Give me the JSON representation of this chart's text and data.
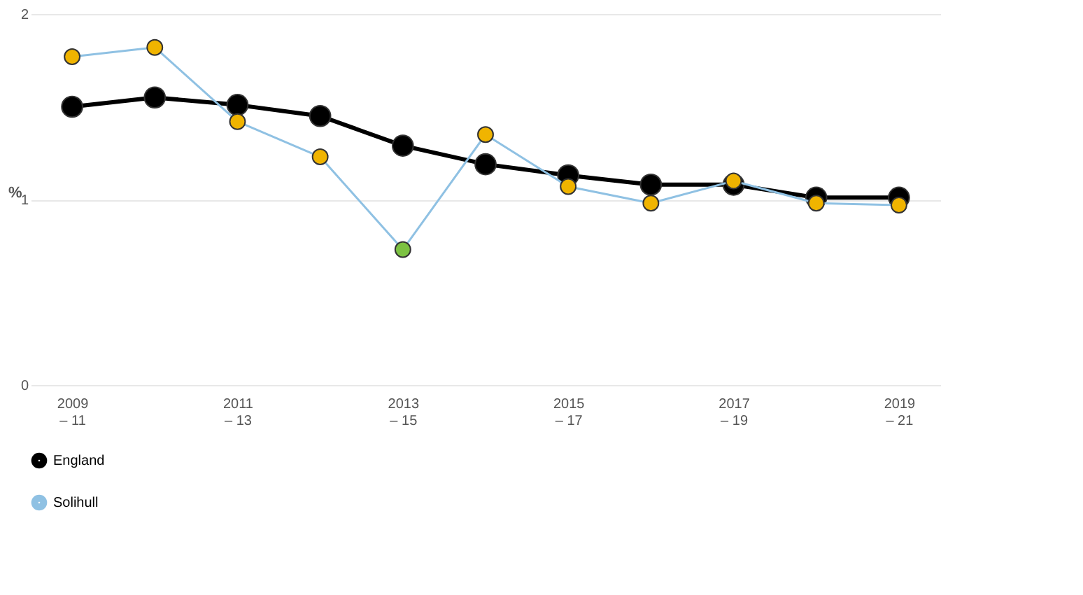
{
  "chart_data": {
    "type": "line",
    "ylabel": "%",
    "categories": [
      "2009\n– 11",
      null,
      "2011\n– 13",
      null,
      "2013\n– 15",
      null,
      "2015\n– 17",
      null,
      "2017\n– 19",
      null,
      "2019\n– 21"
    ],
    "series": [
      {
        "name": "England",
        "color": "#000000",
        "values": [
          1.5,
          1.55,
          1.51,
          1.45,
          1.29,
          1.19,
          1.13,
          1.08,
          1.08,
          1.01,
          1.01
        ]
      },
      {
        "name": "Solihull",
        "color": "#8fc1e3",
        "values": [
          1.77,
          1.82,
          1.42,
          1.23,
          0.73,
          1.35,
          1.07,
          0.98,
          1.1,
          0.98,
          0.97
        ],
        "colors": [
          "#f0b400",
          "#f0b400",
          "#f0b400",
          "#f0b400",
          "#7cc242",
          "#f0b400",
          "#f0b400",
          "#f0b400",
          "#f0b400",
          "#f0b400",
          "#f0b400"
        ]
      }
    ],
    "ylim": [
      0,
      2
    ],
    "yticks": [
      0,
      1,
      2
    ],
    "grid": "y",
    "legend": "bottom",
    "marker": "circle"
  }
}
